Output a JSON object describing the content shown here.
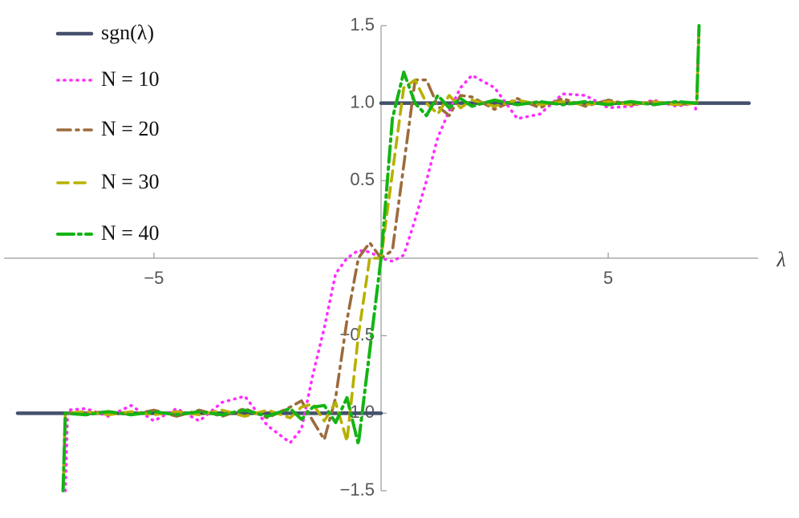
{
  "chart_data": {
    "type": "line",
    "x_label": "λ",
    "xlim": [
      -8.3,
      8.3
    ],
    "ylim": [
      -1.5,
      1.5
    ],
    "xticks": [
      {
        "value": -5,
        "label": "−5"
      },
      5
    ],
    "yticks": [
      {
        "value": -1.5,
        "label": "−1.5"
      },
      {
        "value": -1.0,
        "label": "−1.0"
      },
      {
        "value": -0.5,
        "label": "−0.5"
      },
      0.5,
      {
        "value": 1.0,
        "label": "1.0"
      },
      1.5
    ],
    "legend": "top-left",
    "series": [
      {
        "name": "sgn(λ)",
        "color": "#44506c",
        "dash": "solid",
        "x": [
          -8,
          0,
          0,
          0,
          8.1
        ],
        "values": [
          -1,
          -1,
          null,
          1,
          1
        ]
      },
      {
        "name": "N = 10",
        "color": "#ff2cff",
        "dash": "dotted",
        "x": [
          -6.95,
          -6.9,
          -6.5,
          -6,
          -5.5,
          -5,
          -4.5,
          -4,
          -3.5,
          -3,
          -2.5,
          -2,
          -1.75,
          -1.5,
          -1.25,
          -1,
          -0.75,
          -0.5,
          -0.25,
          0,
          0.25,
          0.5,
          0.75,
          1,
          1.25,
          1.5,
          1.75,
          2,
          2.5,
          3,
          3.5,
          4,
          4.5,
          5,
          5.5,
          6,
          6.5,
          6.9,
          6.95
        ],
        "values": [
          -1.5,
          -0.98,
          -0.97,
          -1.02,
          -0.95,
          -1.05,
          -0.97,
          -1.05,
          -0.93,
          -0.89,
          -1.08,
          -1.19,
          -1.1,
          -0.75,
          -0.45,
          -0.1,
          0.0,
          0.05,
          0.04,
          0.0,
          -0.02,
          0.02,
          0.25,
          0.5,
          0.78,
          0.95,
          1.1,
          1.18,
          1.1,
          0.9,
          0.93,
          1.06,
          1.05,
          0.97,
          0.98,
          1.02,
          0.98,
          1.0,
          0.93
        ]
      },
      {
        "name": "N = 20",
        "color": "#9c6b3c",
        "dash": "dashdot",
        "x": [
          -7,
          -6.95,
          -6.5,
          -6,
          -5.5,
          -5,
          -4.5,
          -4,
          -3.5,
          -3,
          -2.5,
          -2,
          -1.75,
          -1.5,
          -1.25,
          -1,
          -0.75,
          -0.5,
          -0.25,
          0,
          0.25,
          0.5,
          0.75,
          1,
          1.25,
          1.5,
          1.75,
          2,
          2.5,
          3,
          3.5,
          4,
          4.5,
          5,
          5.5,
          6,
          6.5,
          6.95,
          7
        ],
        "values": [
          -1.5,
          -1.0,
          -1.0,
          -0.99,
          -1.01,
          -0.98,
          -1.02,
          -0.98,
          -1.02,
          -0.97,
          -1.03,
          -0.96,
          -0.92,
          -1.05,
          -1.17,
          -0.9,
          -0.4,
          0.0,
          0.1,
          0.0,
          0.05,
          0.6,
          1.15,
          1.15,
          0.98,
          0.92,
          1.05,
          1.04,
          0.96,
          1.03,
          0.97,
          1.03,
          0.98,
          1.02,
          0.99,
          1.01,
          0.99,
          1.0,
          1.5
        ]
      },
      {
        "name": "N = 30",
        "color": "#b8b000",
        "dash": "dashed",
        "x": [
          -7,
          -6.95,
          -6.5,
          -6,
          -5.5,
          -5,
          -4.5,
          -4,
          -3.5,
          -3,
          -2.5,
          -2,
          -1.75,
          -1.5,
          -1.25,
          -1,
          -0.75,
          -0.5,
          -0.25,
          0,
          0.25,
          0.5,
          0.75,
          1,
          1.25,
          1.5,
          1.75,
          2,
          2.5,
          3,
          3.5,
          4,
          4.5,
          5,
          5.5,
          6,
          6.5,
          6.95,
          7
        ],
        "values": [
          -1.5,
          -1.0,
          -0.99,
          -1.01,
          -0.99,
          -1.01,
          -0.99,
          -1.01,
          -0.98,
          -1.02,
          -0.98,
          -1.03,
          -0.96,
          -0.94,
          -1.05,
          -0.93,
          -1.18,
          -0.5,
          0.0,
          0.0,
          0.55,
          1.1,
          1.15,
          1.0,
          0.93,
          1.05,
          0.97,
          1.02,
          0.98,
          1.02,
          0.99,
          1.01,
          0.99,
          1.01,
          0.99,
          1.01,
          0.99,
          1.0,
          1.5
        ]
      },
      {
        "name": "N = 40",
        "color": "#14b414",
        "dash": "longdashdot",
        "x": [
          -7,
          -6.95,
          -6.5,
          -6,
          -5.5,
          -5,
          -4.5,
          -4,
          -3.5,
          -3,
          -2.5,
          -2,
          -1.75,
          -1.5,
          -1.25,
          -1,
          -0.75,
          -0.5,
          -0.25,
          0,
          0.25,
          0.5,
          0.75,
          1,
          1.25,
          1.5,
          1.75,
          2,
          2.5,
          3,
          3.5,
          4,
          4.5,
          5,
          5.5,
          6,
          6.5,
          6.95,
          7
        ],
        "values": [
          -1.5,
          -1.0,
          -1.01,
          -0.99,
          -1.01,
          -0.99,
          -1.01,
          -0.99,
          -1.01,
          -0.98,
          -1.02,
          -0.97,
          -1.04,
          -0.96,
          -0.95,
          -1.06,
          -0.9,
          -1.2,
          -0.6,
          0.0,
          0.9,
          1.2,
          1.0,
          0.92,
          1.05,
          0.97,
          1.03,
          0.98,
          1.02,
          0.99,
          1.01,
          0.99,
          1.01,
          0.99,
          1.01,
          0.99,
          1.01,
          1.0,
          1.5
        ]
      }
    ]
  }
}
